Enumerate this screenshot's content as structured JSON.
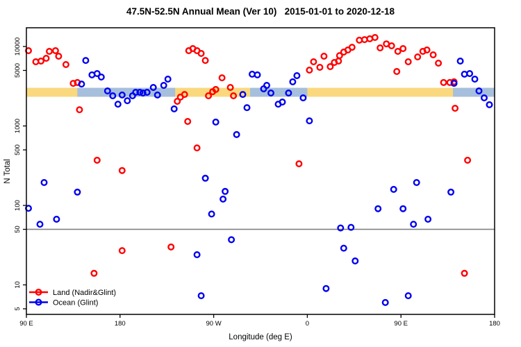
{
  "title": "47.5N-52.5N Annual Mean (Ver 10)   2015-01-01 to 2020-12-18",
  "chart_data": {
    "type": "scatter",
    "title": "47.5N-52.5N Annual Mean (Ver 10)   2015-01-01 to 2020-12-18",
    "xlabel": "Longitude (deg E)",
    "ylabel": "N Total",
    "x_axis": {
      "min": 90,
      "max": 540,
      "ticks": [
        {
          "value": 90,
          "label": "90 E"
        },
        {
          "value": 180,
          "label": "180"
        },
        {
          "value": 270,
          "label": "90 W"
        },
        {
          "value": 360,
          "label": "0"
        },
        {
          "value": 450,
          "label": "90 E"
        },
        {
          "value": 540,
          "label": "180"
        }
      ]
    },
    "y_axis": {
      "scale": "log",
      "min": 4.2,
      "max": 14000,
      "ticks": [
        {
          "value": 10000,
          "label": "10000"
        },
        {
          "value": 5000,
          "label": "5000"
        },
        {
          "value": 1000,
          "label": "1000"
        },
        {
          "value": 500,
          "label": "500"
        },
        {
          "value": 100,
          "label": "100"
        },
        {
          "value": 50,
          "label": "50"
        },
        {
          "value": 10,
          "label": "10"
        },
        {
          "value": 5,
          "label": "5"
        }
      ]
    },
    "reference_line": {
      "y": 50,
      "color": "#808080"
    },
    "bands": {
      "value_range": [
        2330,
        3020
      ],
      "land_band": {
        "color": "#FAD87E",
        "segments": [
          [
            90,
            540
          ]
        ]
      },
      "ocean_band": {
        "color": "#A6BFDC",
        "segments": [
          [
            139,
            233
          ],
          [
            305,
            360
          ],
          [
            500,
            540
          ]
        ]
      }
    },
    "legend_position": "bottom-left",
    "series": [
      {
        "name": "Land (Nadir&Glint)",
        "color": "#FF0000",
        "points": [
          [
            92,
            8860
          ],
          [
            99,
            6430
          ],
          [
            104,
            6560
          ],
          [
            109,
            7110
          ],
          [
            112,
            8690
          ],
          [
            118,
            8870
          ],
          [
            121,
            7550
          ],
          [
            128,
            5930
          ],
          [
            135,
            3440
          ],
          [
            139,
            3520
          ],
          [
            141,
            1600
          ],
          [
            155,
            14
          ],
          [
            158,
            370
          ],
          [
            182,
            275
          ],
          [
            182,
            27
          ],
          [
            229,
            30
          ],
          [
            235,
            2040
          ],
          [
            238,
            2310
          ],
          [
            242,
            2490
          ],
          [
            245,
            1140
          ],
          [
            246,
            8870
          ],
          [
            250,
            9410
          ],
          [
            254,
            8870
          ],
          [
            254,
            530
          ],
          [
            258,
            8180
          ],
          [
            262,
            6680
          ],
          [
            265,
            2400
          ],
          [
            269,
            2700
          ],
          [
            272,
            2880
          ],
          [
            278,
            4040
          ],
          [
            286,
            3050
          ],
          [
            289,
            2400
          ],
          [
            352,
            334
          ],
          [
            362,
            5050
          ],
          [
            366,
            6430
          ],
          [
            372,
            5470
          ],
          [
            376,
            7550
          ],
          [
            382,
            5580
          ],
          [
            386,
            6300
          ],
          [
            390,
            6560
          ],
          [
            391,
            7690
          ],
          [
            395,
            8510
          ],
          [
            399,
            9040
          ],
          [
            403,
            9790
          ],
          [
            410,
            12000
          ],
          [
            415,
            12200
          ],
          [
            420,
            12500
          ],
          [
            425,
            13000
          ],
          [
            430,
            9610
          ],
          [
            436,
            10800
          ],
          [
            441,
            10200
          ],
          [
            446,
            4850
          ],
          [
            447,
            8690
          ],
          [
            452,
            9420
          ],
          [
            457,
            6430
          ],
          [
            466,
            7400
          ],
          [
            471,
            8690
          ],
          [
            475,
            9040
          ],
          [
            481,
            7850
          ],
          [
            486,
            6170
          ],
          [
            491,
            3520
          ],
          [
            497,
            3520
          ],
          [
            501,
            3590
          ],
          [
            502,
            1670
          ],
          [
            511,
            14
          ],
          [
            514,
            370
          ]
        ]
      },
      {
        "name": "Ocean (Glint)",
        "color": "#0000F0",
        "points": [
          [
            92,
            92
          ],
          [
            103,
            58
          ],
          [
            107,
            194
          ],
          [
            119,
            67
          ],
          [
            139,
            147
          ],
          [
            143,
            3370
          ],
          [
            147,
            6680
          ],
          [
            153,
            4390
          ],
          [
            158,
            4560
          ],
          [
            162,
            4130
          ],
          [
            168,
            2760
          ],
          [
            173,
            2400
          ],
          [
            178,
            1880
          ],
          [
            182,
            2450
          ],
          [
            187,
            2080
          ],
          [
            192,
            2400
          ],
          [
            195,
            2650
          ],
          [
            199,
            2650
          ],
          [
            202,
            2600
          ],
          [
            206,
            2650
          ],
          [
            212,
            3050
          ],
          [
            216,
            2450
          ],
          [
            222,
            3240
          ],
          [
            226,
            3890
          ],
          [
            232,
            1640
          ],
          [
            254,
            24
          ],
          [
            258,
            7.3
          ],
          [
            262,
            220
          ],
          [
            268,
            78
          ],
          [
            272,
            1120
          ],
          [
            279,
            120
          ],
          [
            281,
            150
          ],
          [
            287,
            37
          ],
          [
            292,
            780
          ],
          [
            298,
            2490
          ],
          [
            302,
            1700
          ],
          [
            307,
            4480
          ],
          [
            312,
            4390
          ],
          [
            318,
            2930
          ],
          [
            321,
            3240
          ],
          [
            325,
            2600
          ],
          [
            332,
            1880
          ],
          [
            336,
            2000
          ],
          [
            342,
            2600
          ],
          [
            346,
            3590
          ],
          [
            350,
            4300
          ],
          [
            356,
            2260
          ],
          [
            362,
            1160
          ],
          [
            378,
            9
          ],
          [
            392,
            52
          ],
          [
            395,
            29
          ],
          [
            402,
            53
          ],
          [
            406,
            20
          ],
          [
            428,
            91
          ],
          [
            435,
            6
          ],
          [
            443,
            159
          ],
          [
            452,
            91
          ],
          [
            457,
            7.3
          ],
          [
            462,
            58
          ],
          [
            465,
            194
          ],
          [
            476,
            67
          ],
          [
            498,
            147
          ],
          [
            501,
            3440
          ],
          [
            507,
            6560
          ],
          [
            511,
            4480
          ],
          [
            516,
            4560
          ],
          [
            521,
            3890
          ],
          [
            525,
            2760
          ],
          [
            530,
            2260
          ],
          [
            535,
            1850
          ]
        ]
      }
    ]
  }
}
